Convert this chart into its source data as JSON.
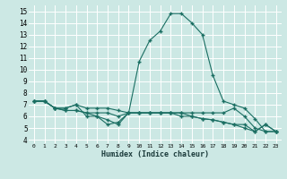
{
  "background_color": "#cce8e4",
  "grid_color": "#ffffff",
  "line_color": "#1a6e62",
  "x_label": "Humidex (Indice chaleur)",
  "x_ticks": [
    0,
    1,
    2,
    3,
    4,
    5,
    6,
    7,
    8,
    9,
    10,
    11,
    12,
    13,
    14,
    15,
    16,
    17,
    18,
    19,
    20,
    21,
    22,
    23
  ],
  "y_ticks": [
    4,
    5,
    6,
    7,
    8,
    9,
    10,
    11,
    12,
    13,
    14,
    15
  ],
  "ylim": [
    3.7,
    15.5
  ],
  "xlim": [
    -0.5,
    23.5
  ],
  "series": [
    {
      "x": [
        0,
        1,
        2,
        3,
        4,
        5,
        6,
        7,
        8,
        9,
        10,
        11,
        12,
        13,
        14,
        15,
        16,
        17,
        18,
        19,
        20,
        21,
        22,
        23
      ],
      "y": [
        7.3,
        7.3,
        6.7,
        6.7,
        7.0,
        6.0,
        6.0,
        5.3,
        5.5,
        6.3,
        10.7,
        12.5,
        13.3,
        14.8,
        14.8,
        14.0,
        13.0,
        9.5,
        7.3,
        7.0,
        6.7,
        5.8,
        4.7,
        4.7
      ]
    },
    {
      "x": [
        0,
        1,
        2,
        3,
        4,
        5,
        6,
        7,
        8,
        9,
        10,
        11,
        12,
        13,
        14,
        15,
        16,
        17,
        18,
        19,
        20,
        21,
        22,
        23
      ],
      "y": [
        7.3,
        7.3,
        6.7,
        6.7,
        7.0,
        6.7,
        6.7,
        6.7,
        6.5,
        6.3,
        6.3,
        6.3,
        6.3,
        6.3,
        6.3,
        6.3,
        6.3,
        6.3,
        6.3,
        6.7,
        6.0,
        5.0,
        4.7,
        4.7
      ]
    },
    {
      "x": [
        0,
        1,
        2,
        3,
        4,
        5,
        6,
        7,
        8,
        9,
        10,
        11,
        12,
        13,
        14,
        15,
        16,
        17,
        18,
        19,
        20,
        21,
        22,
        23
      ],
      "y": [
        7.3,
        7.3,
        6.7,
        6.5,
        6.5,
        6.3,
        6.3,
        6.3,
        6.0,
        6.3,
        6.3,
        6.3,
        6.3,
        6.3,
        6.0,
        6.0,
        5.8,
        5.7,
        5.5,
        5.3,
        5.3,
        4.7,
        5.3,
        4.7
      ]
    },
    {
      "x": [
        0,
        1,
        2,
        3,
        4,
        5,
        6,
        7,
        8,
        9,
        10,
        11,
        12,
        13,
        14,
        15,
        16,
        17,
        18,
        19,
        20,
        21,
        22,
        23
      ],
      "y": [
        7.3,
        7.3,
        6.7,
        6.5,
        6.5,
        6.3,
        6.0,
        5.7,
        5.3,
        6.3,
        6.3,
        6.3,
        6.3,
        6.3,
        6.3,
        6.0,
        5.8,
        5.7,
        5.5,
        5.3,
        5.0,
        4.7,
        5.3,
        4.7
      ]
    }
  ]
}
